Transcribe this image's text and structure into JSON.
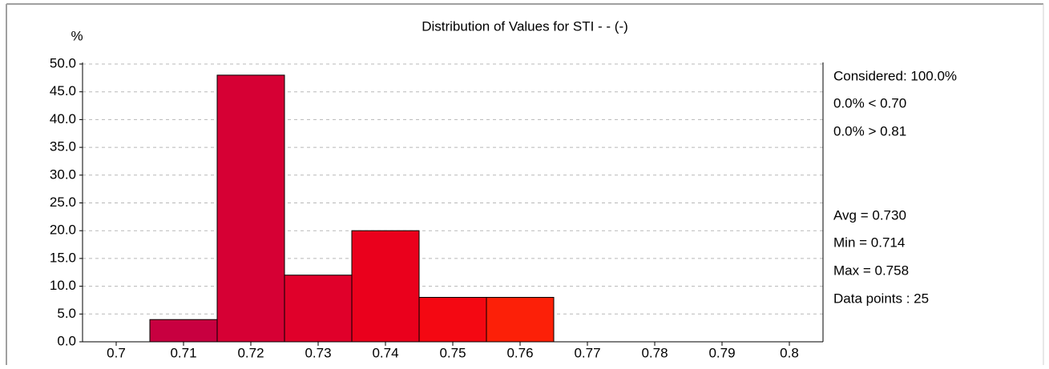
{
  "chart_data": {
    "type": "histogram",
    "title": "Distribution of Values for STI  - - (-)",
    "ylabel": "%",
    "bins": [
      0.705,
      0.715,
      0.725,
      0.735,
      0.745,
      0.755,
      0.765
    ],
    "values": [
      4,
      48,
      12,
      20,
      8,
      8
    ],
    "colors": [
      "#c80040",
      "#d60034",
      "#e0002a",
      "#ea001c",
      "#f40812",
      "#fc2008"
    ],
    "xlim": [
      0.695,
      0.805
    ],
    "xticks": [
      0.7,
      0.71,
      0.72,
      0.73,
      0.74,
      0.75,
      0.76,
      0.77,
      0.78,
      0.79,
      0.8
    ],
    "ylim": [
      0,
      50
    ],
    "yticks": [
      {
        "value": 0,
        "label": "0.0"
      },
      {
        "value": 5,
        "label": "5.0"
      },
      {
        "value": 10,
        "label": "10.0"
      },
      {
        "value": 15,
        "label": "15.0"
      },
      {
        "value": 20,
        "label": "20.0"
      },
      {
        "value": 25,
        "label": "25.0"
      },
      {
        "value": 30,
        "label": "30.0"
      },
      {
        "value": 35,
        "label": "35.0"
      },
      {
        "value": 40,
        "label": "40.0"
      },
      {
        "value": 45,
        "label": "45.0"
      },
      {
        "value": 50,
        "label": "50.0"
      }
    ],
    "grid": true,
    "annotations": [
      "Considered: 100.0%",
      "0.0%  < 0.70",
      "0.0%  > 0.81",
      "Avg = 0.730",
      "Min = 0.714",
      "Max = 0.758",
      "Data points : 25"
    ]
  }
}
